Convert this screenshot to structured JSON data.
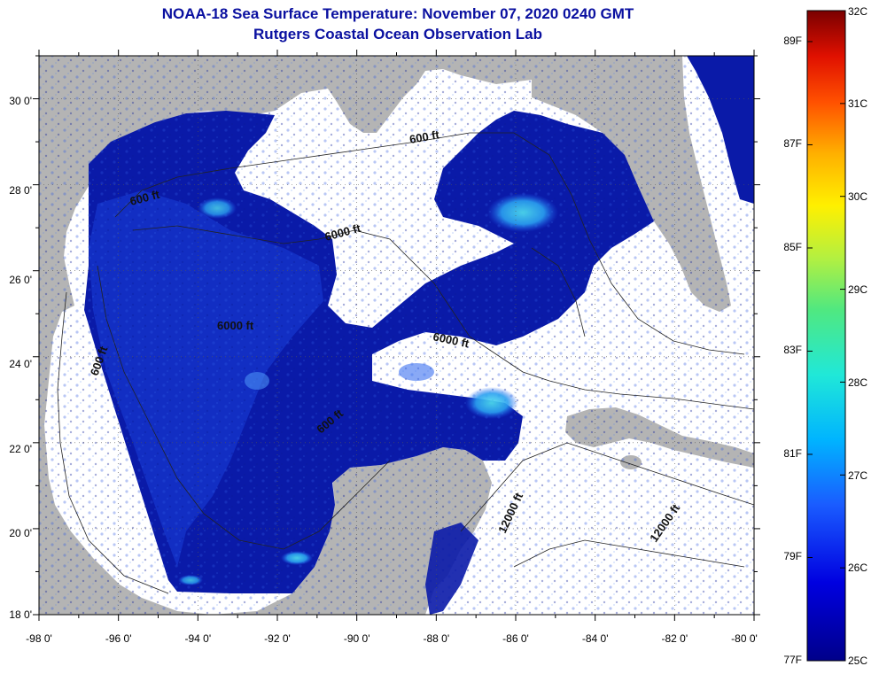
{
  "title": {
    "line1": "NOAA-18 Sea Surface Temperature:  November 07, 2020 0240 GMT",
    "line2": "Rutgers Coastal Ocean Observation Lab"
  },
  "map": {
    "lon_labels": [
      "-98 0'",
      "-96 0'",
      "-94 0'",
      "-92 0'",
      "-90 0'",
      "-88 0'",
      "-86 0'",
      "-84 0'",
      "-82 0'",
      "-80 0'"
    ],
    "lat_labels": [
      "30 0'",
      "28 0'",
      "26 0'",
      "24 0'",
      "22 0'",
      "20 0'",
      "18 0'"
    ],
    "lon_range": [
      -98,
      -80
    ],
    "lat_range": [
      18,
      31
    ],
    "contour_labels": [
      "600 ft",
      "600 ft",
      "6000 ft",
      "6000 ft",
      "600 ft",
      "6000 ft",
      "600 ft",
      "12000 ft",
      "12000 ft"
    ],
    "colors": {
      "land": "#b4b4b4",
      "cloud": "#ffffff",
      "water_cold": "#0a1aa8",
      "water_mid": "#1f5cf0",
      "water_warm": "#3fd2e8"
    }
  },
  "colorbar": {
    "celsius_labels": [
      "32C",
      "31C",
      "30C",
      "29C",
      "28C",
      "27C",
      "26C",
      "25C"
    ],
    "fahrenheit_labels": [
      "89F",
      "87F",
      "85F",
      "83F",
      "81F",
      "79F",
      "77F"
    ],
    "range_c": [
      25,
      32
    ],
    "range_f": [
      77,
      89.6
    ]
  }
}
